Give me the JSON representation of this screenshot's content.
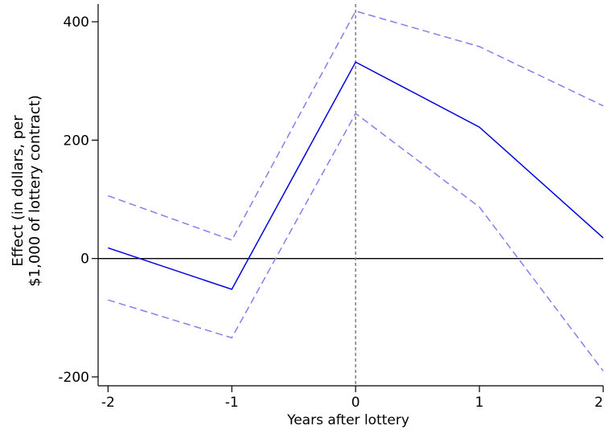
{
  "chart_data": {
    "type": "line",
    "title": "",
    "xlabel": "Years after lottery",
    "ylabel_lines": [
      "Effect (in dollars, per",
      "$1,000 of lottery contract)"
    ],
    "x": [
      -2,
      -1,
      0,
      1,
      2
    ],
    "xlim": [
      -2.08,
      2.0
    ],
    "ylim": [
      -215,
      430
    ],
    "xticks": [
      -2,
      -1,
      0,
      1,
      2
    ],
    "xtick_labels": [
      "-2",
      "-1",
      "0",
      "1",
      "2"
    ],
    "yticks": [
      -200,
      0,
      200,
      400
    ],
    "ytick_labels": [
      "-200",
      "0",
      "200",
      "400"
    ],
    "grid": false,
    "reference_lines": {
      "horizontal_y": 0,
      "vertical_x": 0
    },
    "series": [
      {
        "role": "estimate",
        "values": [
          18,
          -52,
          332,
          222,
          35
        ],
        "color": "#0000dd",
        "style": "solid"
      },
      {
        "role": "upper-ci",
        "values": [
          106,
          31,
          418,
          358,
          258
        ],
        "color": "#8080ee",
        "style": "dashed"
      },
      {
        "role": "lower-ci",
        "values": [
          -70,
          -134,
          245,
          87,
          -190
        ],
        "color": "#8080ee",
        "style": "dashed"
      }
    ],
    "colors": {
      "axis": "#000000",
      "zero_line": "#000000",
      "vertical_ref": "#777777"
    }
  }
}
